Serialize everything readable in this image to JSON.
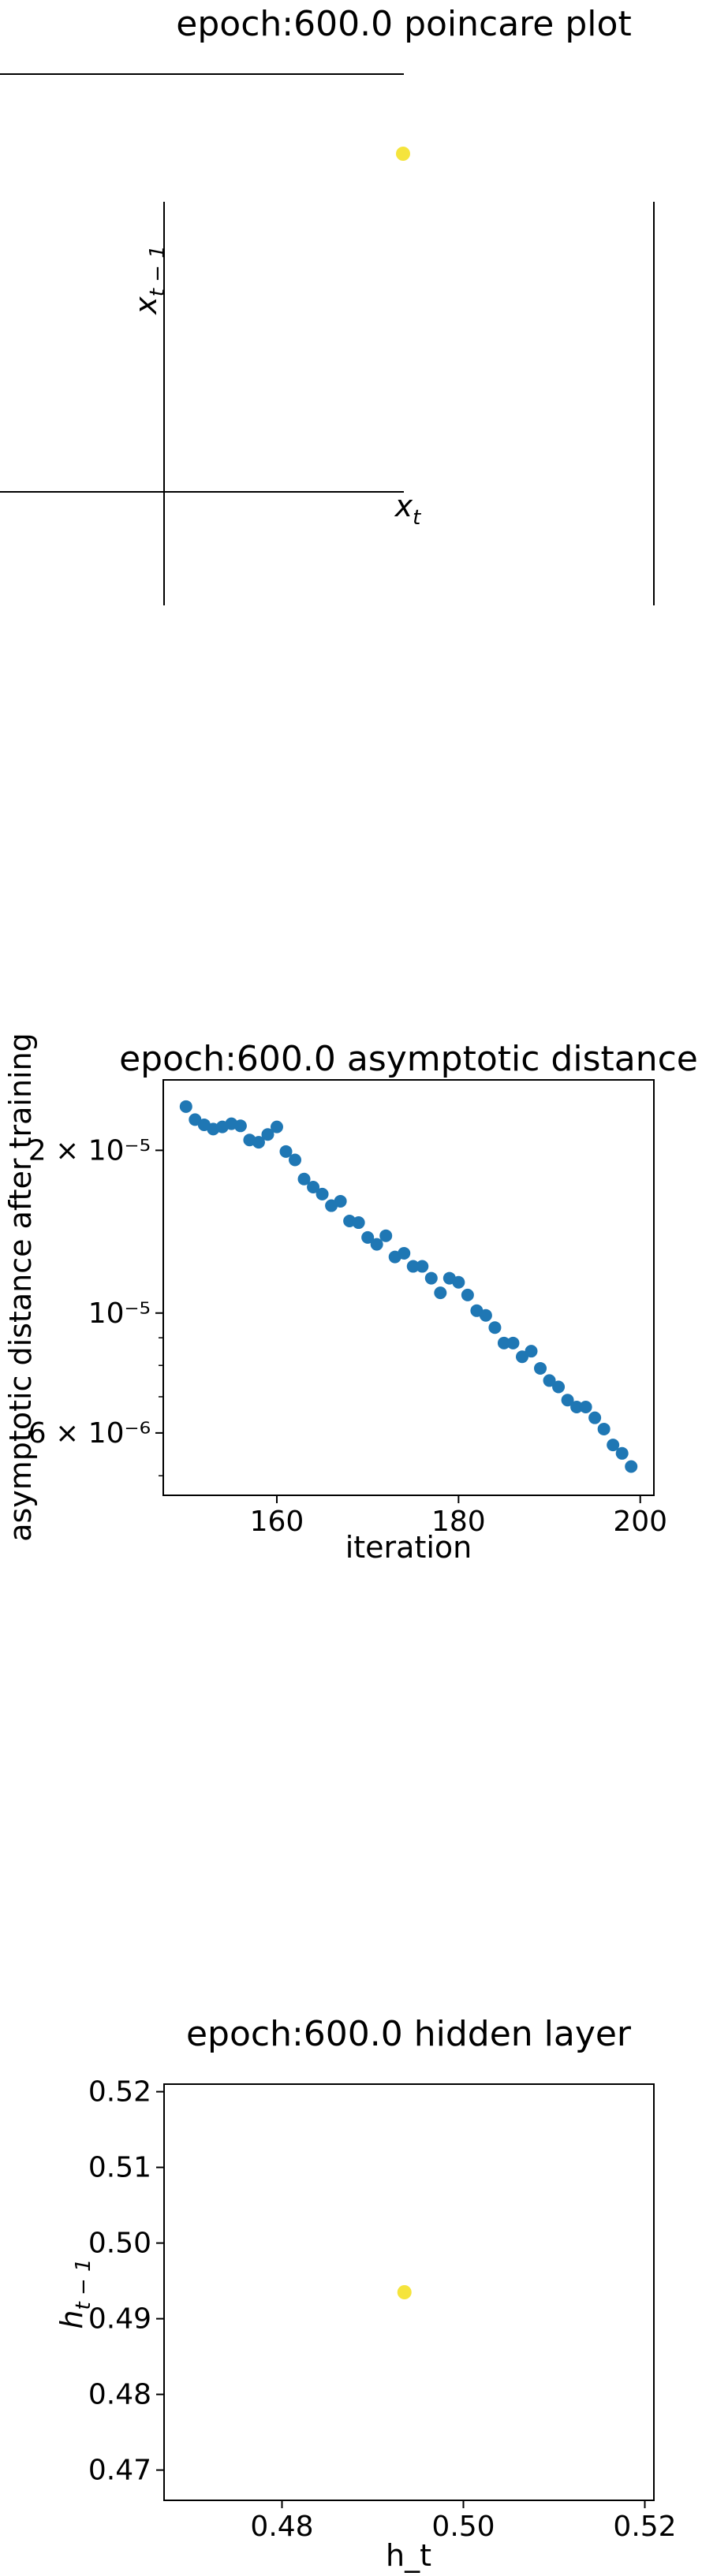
{
  "chart_data": [
    {
      "type": "scatter",
      "title": "epoch:600.0 poincare plot",
      "xlabel": "x_t",
      "ylabel": "x_{t-1}",
      "axes_style": "spines through origin",
      "points": [
        {
          "x": 0.49,
          "y": 0.49
        }
      ],
      "point_color": "#f5e43c"
    },
    {
      "type": "scatter",
      "title": "epoch:600.0 asymptotic distance",
      "xlabel": "iteration",
      "ylabel": "asymptotic distance after training",
      "yscale": "log",
      "xlim": [
        147.5,
        201.5
      ],
      "ylim": [
        4.6e-06,
        2.7e-05
      ],
      "x_ticks": [
        160,
        180,
        200
      ],
      "y_ticks": [
        {
          "value": 6e-06,
          "label": "6 × 10⁻⁶"
        },
        {
          "value": 1e-05,
          "label": "10⁻⁵"
        },
        {
          "value": 2e-05,
          "label": "2 × 10⁻⁵"
        }
      ],
      "point_color": "#1f77b4",
      "x": [
        150,
        151,
        152,
        153,
        154,
        155,
        156,
        157,
        158,
        159,
        160,
        161,
        162,
        163,
        164,
        165,
        166,
        167,
        168,
        169,
        170,
        171,
        172,
        173,
        174,
        175,
        176,
        177,
        178,
        179,
        180,
        181,
        182,
        183,
        184,
        185,
        186,
        187,
        188,
        189,
        190,
        191,
        192,
        193,
        194,
        195,
        196,
        197,
        198,
        199
      ],
      "y": [
        2.41e-05,
        2.28e-05,
        2.23e-05,
        2.19e-05,
        2.21e-05,
        2.24e-05,
        2.22e-05,
        2.09e-05,
        2.07e-05,
        2.14e-05,
        2.21e-05,
        1.99e-05,
        1.92e-05,
        1.77e-05,
        1.71e-05,
        1.66e-05,
        1.58e-05,
        1.61e-05,
        1.48e-05,
        1.47e-05,
        1.38e-05,
        1.34e-05,
        1.39e-05,
        1.27e-05,
        1.29e-05,
        1.22e-05,
        1.22e-05,
        1.16e-05,
        1.09e-05,
        1.16e-05,
        1.14e-05,
        1.08e-05,
        1.01e-05,
        9.9e-06,
        9.4e-06,
        8.8e-06,
        8.8e-06,
        8.3e-06,
        8.5e-06,
        7.9e-06,
        7.5e-06,
        7.3e-06,
        6.9e-06,
        6.7e-06,
        6.7e-06,
        6.4e-06,
        6.1e-06,
        5.7e-06,
        5.5e-06,
        5.2e-06
      ]
    },
    {
      "type": "scatter",
      "title": "epoch:600.0 hidden layer",
      "xlabel": "h_t",
      "ylabel": "h_{t-1}",
      "xlim": [
        0.467,
        0.521
      ],
      "ylim": [
        0.466,
        0.521
      ],
      "x_ticks": [
        0.48,
        0.5,
        0.52
      ],
      "x_tick_labels": [
        "0.48",
        "0.50",
        "0.52"
      ],
      "y_ticks": [
        0.47,
        0.48,
        0.49,
        0.5,
        0.51,
        0.52
      ],
      "y_tick_labels": [
        "0.47",
        "0.48",
        "0.49",
        "0.50",
        "0.51",
        "0.52"
      ],
      "points": [
        {
          "x": 0.4935,
          "y": 0.4935
        }
      ],
      "point_color": "#f5e43c"
    }
  ]
}
